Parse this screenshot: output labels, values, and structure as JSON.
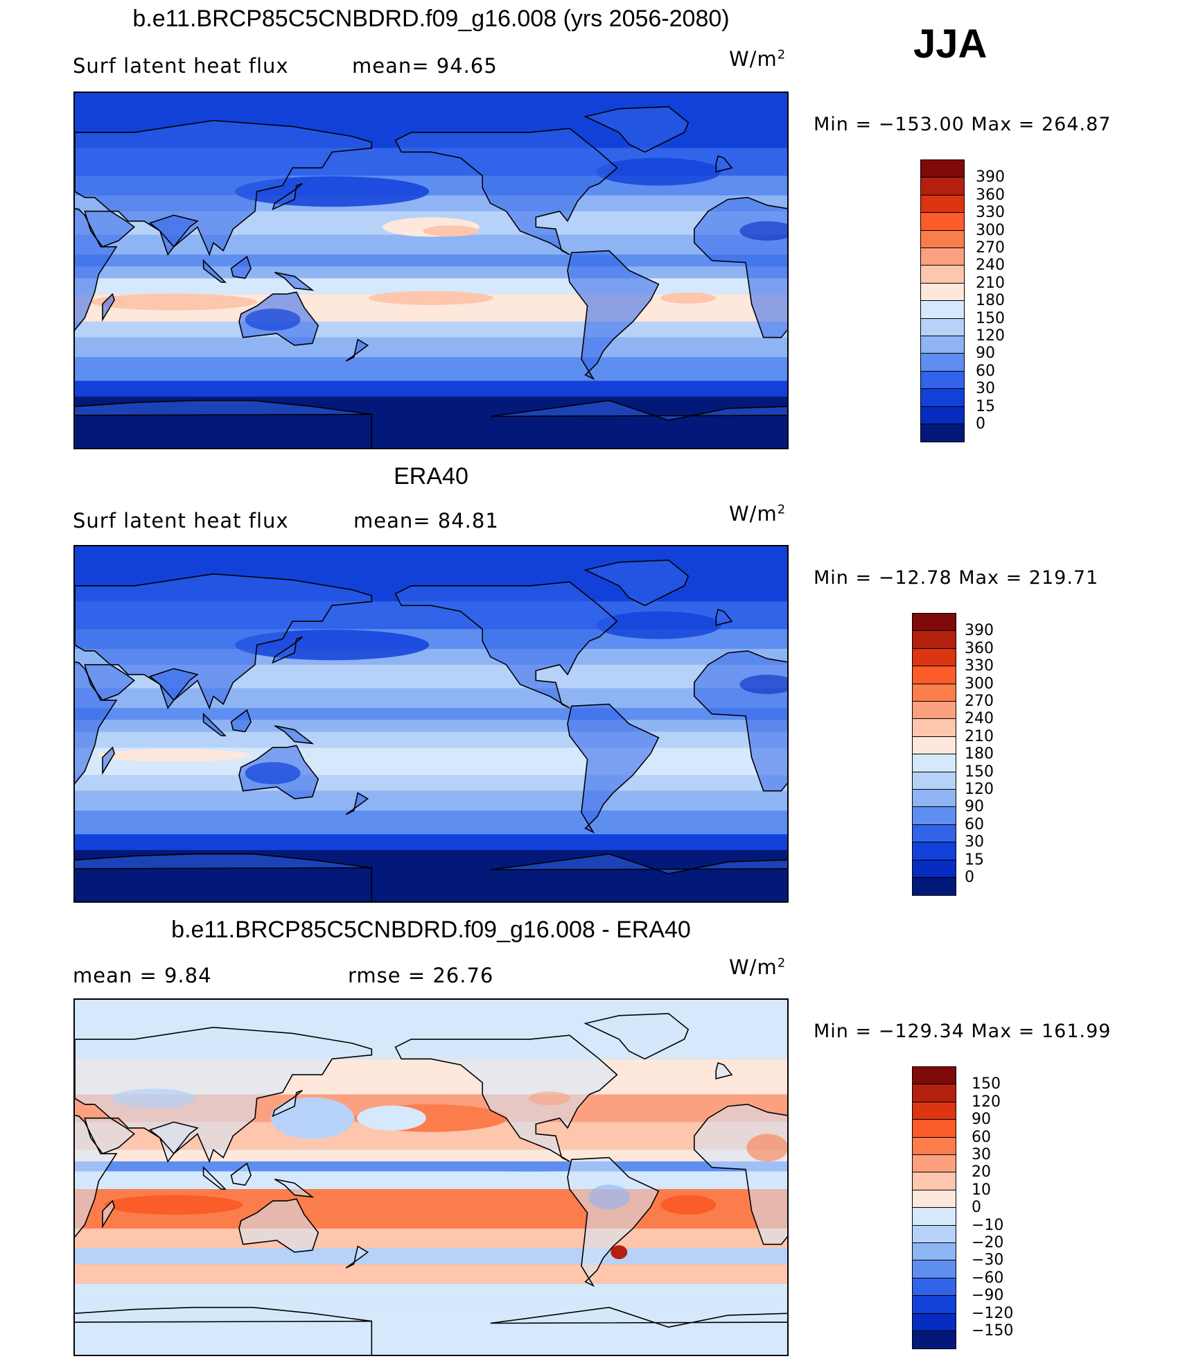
{
  "season": "JJA",
  "panels": [
    {
      "title": "b.e11.BRCP85C5CNBDRD.f09_g16.008 (yrs 2056-2080)",
      "label_left": "Surf latent heat flux",
      "stat": "mean=   94.65",
      "unit": "W/m",
      "unit_exp": "2",
      "minmax": "Min  =  −153.00  Max  =  264.87",
      "colorbar": {
        "labels": [
          "390",
          "360",
          "330",
          "300",
          "270",
          "240",
          "210",
          "180",
          "150",
          "120",
          "90",
          "60",
          "30",
          "15",
          "0"
        ],
        "colors": [
          "#7f0a0a",
          "#b4200e",
          "#db3511",
          "#fa5c2a",
          "#fb7d4c",
          "#fca180",
          "#fdc6ad",
          "#fde8db",
          "#d6e8fb",
          "#b6d2f8",
          "#8fb4f4",
          "#5e8ef0",
          "#3264ea",
          "#1241da",
          "#062cc2",
          "#02197a"
        ]
      },
      "field": "model"
    },
    {
      "title": "ERA40",
      "label_left": "Surf latent heat flux",
      "stat": "mean=   84.81",
      "unit": "W/m",
      "unit_exp": "2",
      "minmax": "Min  =  −12.78  Max  =  219.71",
      "colorbar": {
        "labels": [
          "390",
          "360",
          "330",
          "300",
          "270",
          "240",
          "210",
          "180",
          "150",
          "120",
          "90",
          "60",
          "30",
          "15",
          "0"
        ],
        "colors": [
          "#7f0a0a",
          "#b4200e",
          "#db3511",
          "#fa5c2a",
          "#fb7d4c",
          "#fca180",
          "#fdc6ad",
          "#fde8db",
          "#d6e8fb",
          "#b6d2f8",
          "#8fb4f4",
          "#5e8ef0",
          "#3264ea",
          "#1241da",
          "#062cc2",
          "#02197a"
        ]
      },
      "field": "obs"
    },
    {
      "title": "b.e11.BRCP85C5CNBDRD.f09_g16.008 - ERA40",
      "label_left": "mean  =     9.84",
      "stat": "rmse  =    26.76",
      "unit": "W/m",
      "unit_exp": "2",
      "minmax": "Min  =  −129.34  Max  =  161.99",
      "colorbar": {
        "labels": [
          "150",
          "120",
          "90",
          "60",
          "30",
          "20",
          "10",
          "0",
          "−10",
          "−20",
          "−30",
          "−60",
          "−90",
          "−120",
          "−150"
        ],
        "colors": [
          "#7f0a0a",
          "#b4200e",
          "#db3511",
          "#fa5c2a",
          "#fb7d4c",
          "#fca180",
          "#fdc6ad",
          "#fde8db",
          "#d6e8fb",
          "#b6d2f8",
          "#8fb4f4",
          "#5e8ef0",
          "#3264ea",
          "#1241da",
          "#062cc2",
          "#02197a"
        ]
      },
      "field": "diff"
    }
  ]
}
